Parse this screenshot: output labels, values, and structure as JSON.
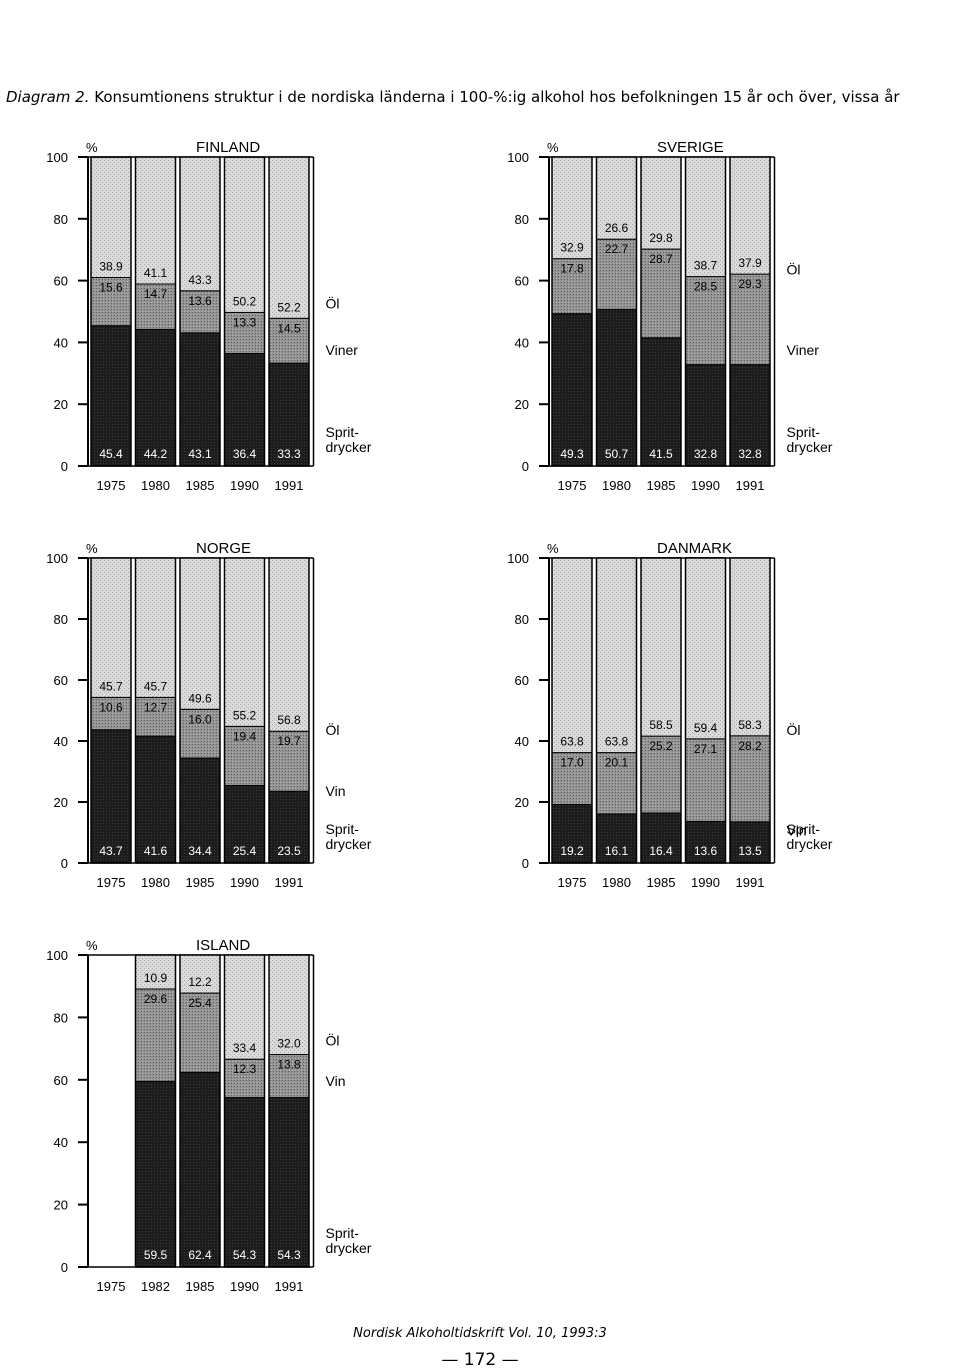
{
  "caption": {
    "lead": "Diagram 2.",
    "text": "Konsumtionens struktur i de nordiska länderna i 100-%:ig alkohol hos befolkningen 15 år och över, vissa år"
  },
  "footer": {
    "journal": "Nordisk Alkoholtidskrift Vol. 10, 1993:3",
    "page": "— 172 —"
  },
  "colors": {
    "sprit": "#1c1c1c",
    "viner": "#8e8e8e",
    "ol": "#dcdcdc"
  },
  "chart_data": [
    {
      "type": "bar",
      "stacked": true,
      "title": "FINLAND",
      "unit": "%",
      "ylim": [
        0,
        100
      ],
      "yticks": [
        0,
        20,
        40,
        60,
        80,
        100
      ],
      "categories": [
        "1975",
        "1980",
        "1985",
        "1990",
        "1991"
      ],
      "series": [
        {
          "name": "Sprit-drycker",
          "name_lines": [
            "Sprit-",
            "drycker"
          ],
          "values": [
            45.4,
            44.2,
            43.1,
            36.4,
            33.3
          ]
        },
        {
          "name": "Viner",
          "name_lines": [
            "Viner"
          ],
          "values": [
            15.6,
            14.7,
            13.6,
            13.3,
            14.5
          ]
        },
        {
          "name": "Öl",
          "name_lines": [
            "Öl"
          ],
          "values": [
            38.9,
            41.1,
            43.3,
            50.2,
            52.2
          ]
        }
      ]
    },
    {
      "type": "bar",
      "stacked": true,
      "title": "SVERIGE",
      "unit": "%",
      "ylim": [
        0,
        100
      ],
      "yticks": [
        0,
        20,
        40,
        60,
        80,
        100
      ],
      "categories": [
        "1975",
        "1980",
        "1985",
        "1990",
        "1991"
      ],
      "series": [
        {
          "name": "Sprit-drycker",
          "name_lines": [
            "Sprit-",
            "drycker"
          ],
          "values": [
            49.3,
            50.7,
            41.5,
            32.8,
            32.8
          ]
        },
        {
          "name": "Viner",
          "name_lines": [
            "Viner"
          ],
          "values": [
            17.8,
            22.7,
            28.7,
            28.5,
            29.3
          ]
        },
        {
          "name": "Öl",
          "name_lines": [
            "Öl"
          ],
          "values": [
            32.9,
            26.6,
            29.8,
            38.7,
            37.9
          ]
        }
      ]
    },
    {
      "type": "bar",
      "stacked": true,
      "title": "NORGE",
      "unit": "%",
      "ylim": [
        0,
        100
      ],
      "yticks": [
        0,
        20,
        40,
        60,
        80,
        100
      ],
      "categories": [
        "1975",
        "1980",
        "1985",
        "1990",
        "1991"
      ],
      "series": [
        {
          "name": "Sprit-drycker",
          "name_lines": [
            "Sprit-",
            "drycker"
          ],
          "values": [
            43.7,
            41.6,
            34.4,
            25.4,
            23.5
          ]
        },
        {
          "name": "Vin",
          "name_lines": [
            "Vin"
          ],
          "values": [
            10.6,
            12.7,
            16.0,
            19.4,
            19.7
          ]
        },
        {
          "name": "Öl",
          "name_lines": [
            "Öl"
          ],
          "values": [
            45.7,
            45.7,
            49.6,
            55.2,
            56.8
          ]
        }
      ]
    },
    {
      "type": "bar",
      "stacked": true,
      "title": "DANMARK",
      "unit": "%",
      "ylim": [
        0,
        100
      ],
      "yticks": [
        0,
        20,
        40,
        60,
        80,
        100
      ],
      "categories": [
        "1975",
        "1980",
        "1985",
        "1990",
        "1991"
      ],
      "series": [
        {
          "name": "Sprit-drycker",
          "name_lines": [
            "Sprit-",
            "drycker"
          ],
          "values": [
            19.2,
            16.1,
            16.4,
            13.6,
            13.5
          ]
        },
        {
          "name": "Vin",
          "name_lines": [
            "Vin"
          ],
          "values": [
            17.0,
            20.1,
            25.2,
            27.1,
            28.2
          ]
        },
        {
          "name": "Öl",
          "name_lines": [
            "Öl"
          ],
          "values": [
            63.8,
            63.8,
            58.5,
            59.4,
            58.3
          ]
        }
      ]
    },
    {
      "type": "bar",
      "stacked": true,
      "title": "ISLAND",
      "unit": "%",
      "ylim": [
        0,
        100
      ],
      "yticks": [
        0,
        20,
        40,
        60,
        80,
        100
      ],
      "categories": [
        "1975",
        "1982",
        "1985",
        "1990",
        "1991"
      ],
      "series": [
        {
          "name": "Sprit-drycker",
          "name_lines": [
            "Sprit-",
            "drycker"
          ],
          "values": [
            null,
            59.5,
            62.4,
            54.3,
            54.3
          ]
        },
        {
          "name": "Vin",
          "name_lines": [
            "Vin"
          ],
          "values": [
            null,
            29.6,
            25.4,
            12.3,
            13.8
          ]
        },
        {
          "name": "Öl",
          "name_lines": [
            "Öl"
          ],
          "values": [
            null,
            10.9,
            12.2,
            33.4,
            32.0
          ]
        }
      ]
    }
  ]
}
